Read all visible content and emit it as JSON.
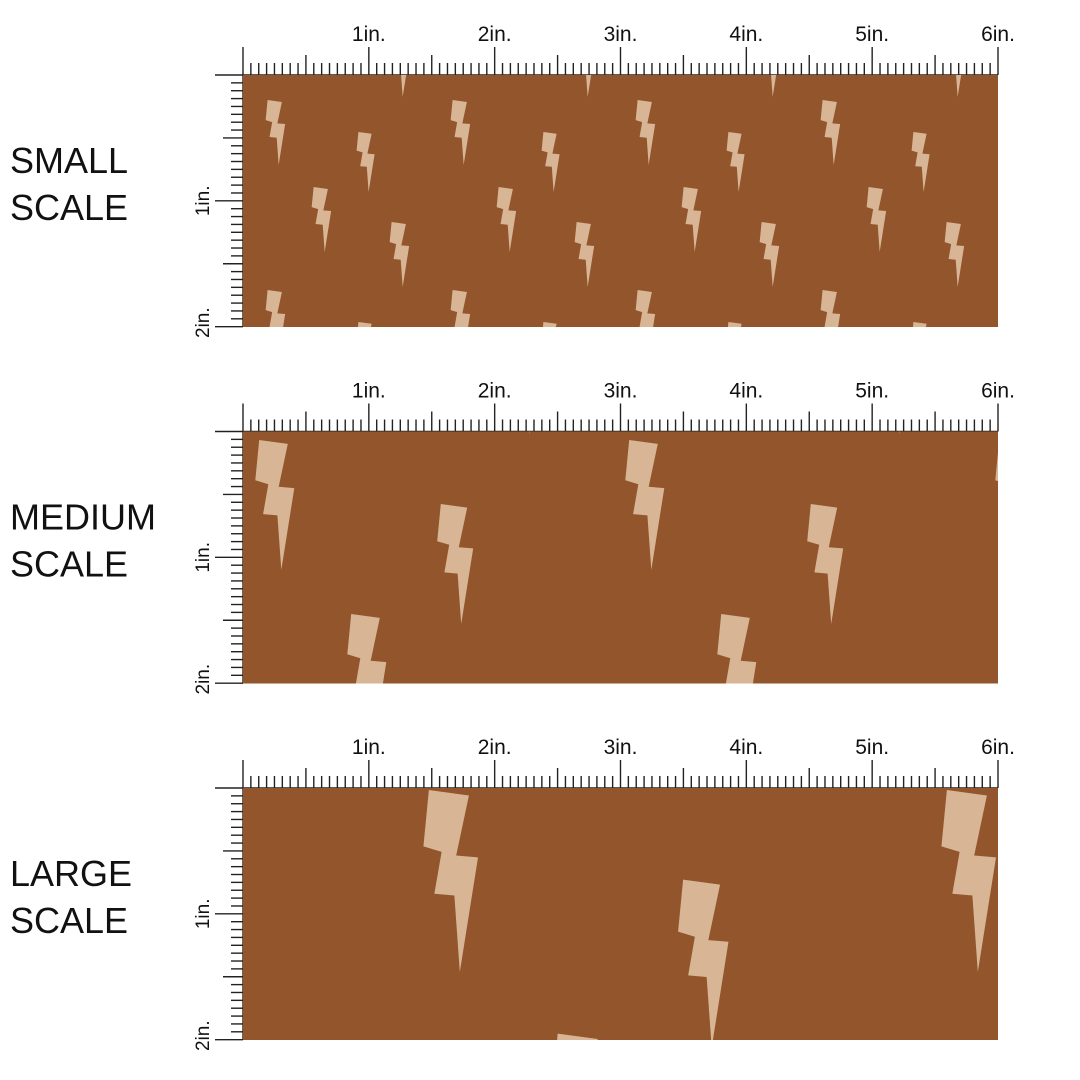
{
  "panels": [
    {
      "label": [
        "SMALL",
        "SCALE"
      ],
      "ruler_top": [
        "1in.",
        "2in.",
        "3in.",
        "4in.",
        "5in.",
        "6in."
      ],
      "ruler_left": [
        "1in.",
        "2in."
      ]
    },
    {
      "label": [
        "MEDIUM",
        "SCALE"
      ],
      "ruler_top": [
        "1in.",
        "2in.",
        "3in.",
        "4in.",
        "5in.",
        "6in."
      ],
      "ruler_left": [
        "1in.",
        "2in."
      ]
    },
    {
      "label": [
        "LARGE",
        "SCALE"
      ],
      "ruler_top": [
        "1in.",
        "2in.",
        "3in.",
        "4in.",
        "5in.",
        "6in."
      ],
      "ruler_left": [
        "1in.",
        "2in."
      ]
    }
  ]
}
